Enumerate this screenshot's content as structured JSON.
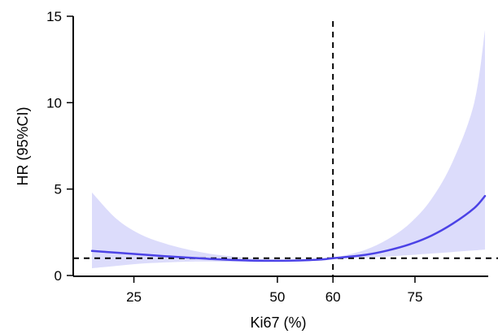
{
  "chart_data": {
    "type": "line",
    "xlabel": "Ki67 (%)",
    "ylabel": "HR (95%CI)",
    "xlim": [
      15,
      90
    ],
    "ylim": [
      0,
      15
    ],
    "x_ticks": [
      25,
      50,
      60,
      75
    ],
    "x_tick_labels": [
      "25",
      "50",
      "60",
      "75"
    ],
    "y_ticks": [
      0,
      5,
      10,
      15
    ],
    "y_tick_labels": [
      "0",
      "5",
      "10",
      "15"
    ],
    "grid": false,
    "legend": "none",
    "reference_lines": [
      {
        "orientation": "horizontal",
        "value": 1,
        "style": "dashed",
        "color": "#000000"
      },
      {
        "orientation": "vertical",
        "value": 60,
        "style": "dashed",
        "color": "#000000"
      }
    ],
    "series": [
      {
        "x": [
          18,
          22,
          26,
          30,
          34,
          38,
          42,
          46,
          50,
          54,
          58,
          60,
          62,
          66,
          70,
          74,
          78,
          82,
          86,
          88
        ],
        "y": [
          1.42,
          1.32,
          1.22,
          1.12,
          1.04,
          0.96,
          0.9,
          0.86,
          0.85,
          0.87,
          0.93,
          1.0,
          1.06,
          1.2,
          1.45,
          1.8,
          2.3,
          3.0,
          3.9,
          4.6
        ],
        "lower": [
          0.42,
          0.55,
          0.68,
          0.75,
          0.8,
          0.81,
          0.8,
          0.79,
          0.8,
          0.82,
          0.88,
          1.0,
          1.0,
          1.03,
          1.1,
          1.18,
          1.27,
          1.36,
          1.45,
          1.5
        ],
        "upper": [
          4.8,
          3.3,
          2.4,
          1.88,
          1.52,
          1.26,
          1.1,
          0.98,
          0.92,
          0.93,
          0.98,
          1.0,
          1.15,
          1.5,
          2.1,
          3.0,
          4.4,
          6.6,
          10.0,
          14.2
        ],
        "color": "#4b42e6",
        "band_color": "#dcdcfb"
      }
    ]
  }
}
